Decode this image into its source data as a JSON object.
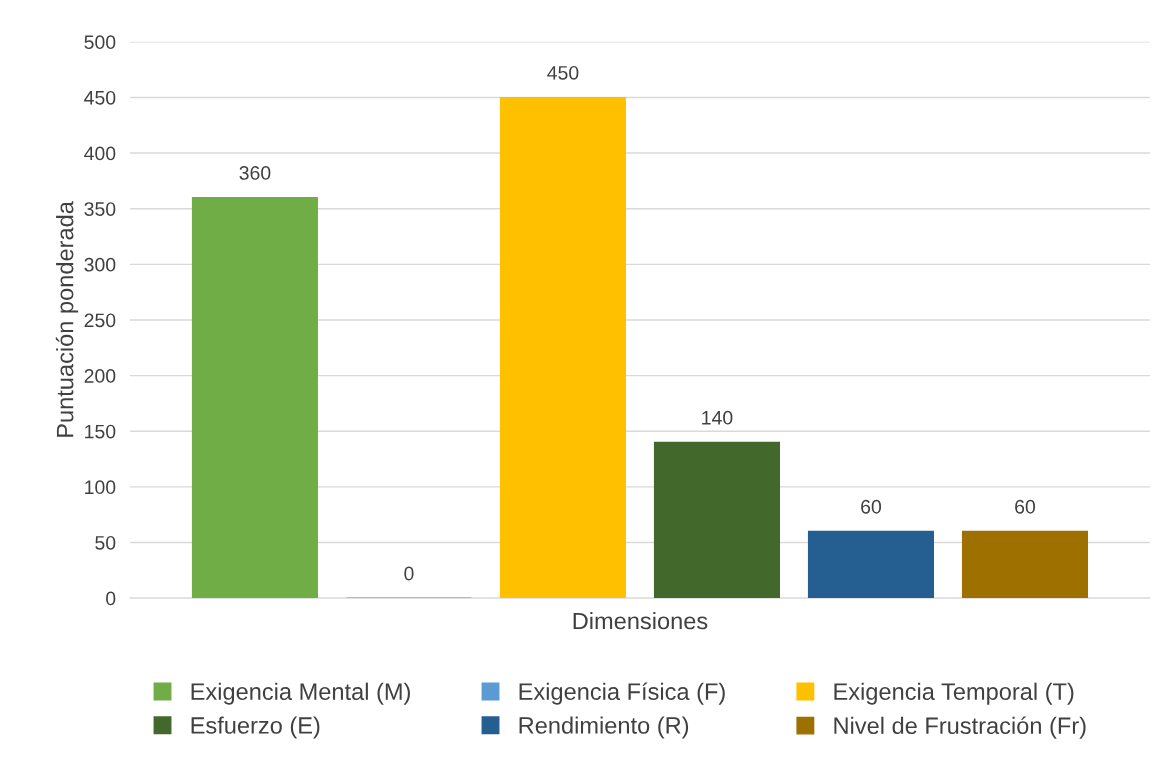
{
  "chart_data": {
    "type": "bar",
    "categories": [
      "Dimensiones"
    ],
    "ylabel": "Puntuación ponderada",
    "ylim": [
      0,
      500
    ],
    "yticks": [
      0,
      50,
      100,
      150,
      200,
      250,
      300,
      350,
      400,
      450,
      500
    ],
    "grid": "y",
    "legend": "bottom",
    "data_labels": true,
    "series": [
      {
        "name": "Exigencia Mental (M)",
        "color": "#70ad47",
        "values": [
          360
        ]
      },
      {
        "name": "Exigencia Física (F)",
        "color": "#5b9bd5",
        "values": [
          0
        ]
      },
      {
        "name": "Exigencia Temporal (T)",
        "color": "#ffc000",
        "values": [
          450
        ]
      },
      {
        "name": "Esfuerzo (E)",
        "color": "#43682b",
        "values": [
          140
        ]
      },
      {
        "name": "Rendimiento (R)",
        "color": "#255e91",
        "values": [
          60
        ]
      },
      {
        "name": "Nivel de Frustración (Fr)",
        "color": "#9e7000",
        "values": [
          60
        ]
      }
    ]
  }
}
